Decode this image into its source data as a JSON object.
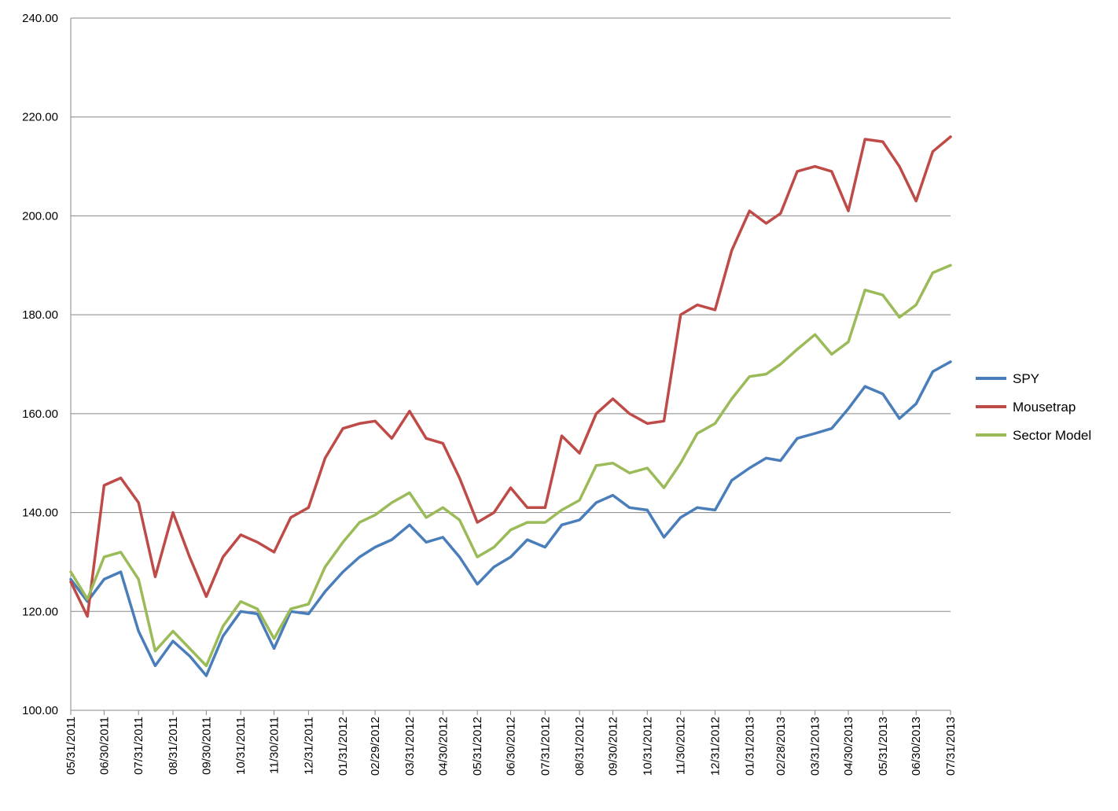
{
  "chart_data": {
    "type": "line",
    "title": "",
    "xlabel": "",
    "ylabel": "",
    "ylim": [
      100,
      240
    ],
    "y_ticks": [
      "100.00",
      "120.00",
      "140.00",
      "160.00",
      "180.00",
      "200.00",
      "220.00",
      "240.00"
    ],
    "grid": "horizontal",
    "legend_position": "right",
    "x_tick_labels": [
      "05/31/2011",
      "06/30/2011",
      "07/31/2011",
      "08/31/2011",
      "09/30/2011",
      "10/31/2011",
      "11/30/2011",
      "12/31/2011",
      "01/31/2012",
      "02/29/2012",
      "03/31/2012",
      "04/30/2012",
      "05/31/2012",
      "06/30/2012",
      "07/31/2012",
      "08/31/2012",
      "09/30/2012",
      "10/31/2012",
      "11/30/2012",
      "12/31/2012",
      "01/31/2013",
      "02/28/2013",
      "03/31/2013",
      "04/30/2013",
      "05/31/2013",
      "06/30/2013",
      "07/31/2013"
    ],
    "x": [
      "2011-05-31",
      "2011-06-15",
      "2011-06-30",
      "2011-07-15",
      "2011-07-31",
      "2011-08-15",
      "2011-08-31",
      "2011-09-15",
      "2011-09-30",
      "2011-10-15",
      "2011-10-31",
      "2011-11-15",
      "2011-11-30",
      "2011-12-15",
      "2011-12-31",
      "2012-01-15",
      "2012-01-31",
      "2012-02-15",
      "2012-02-29",
      "2012-03-15",
      "2012-03-31",
      "2012-04-15",
      "2012-04-30",
      "2012-05-15",
      "2012-05-31",
      "2012-06-15",
      "2012-06-30",
      "2012-07-15",
      "2012-07-31",
      "2012-08-15",
      "2012-08-31",
      "2012-09-15",
      "2012-09-30",
      "2012-10-15",
      "2012-10-31",
      "2012-11-15",
      "2012-11-30",
      "2012-12-15",
      "2012-12-31",
      "2013-01-15",
      "2013-01-31",
      "2013-02-15",
      "2013-02-28",
      "2013-03-15",
      "2013-03-31",
      "2013-04-15",
      "2013-04-30",
      "2013-05-15",
      "2013-05-31",
      "2013-06-15",
      "2013-06-30",
      "2013-07-15",
      "2013-07-31"
    ],
    "series": [
      {
        "name": "SPY",
        "color": "#4A7EBB",
        "values": [
          126.5,
          122.0,
          126.5,
          128.0,
          116.0,
          109.0,
          114.0,
          111.0,
          107.0,
          115.0,
          120.0,
          119.5,
          112.5,
          120.0,
          119.5,
          124.0,
          128.0,
          131.0,
          133.0,
          134.5,
          137.5,
          134.0,
          135.0,
          131.0,
          125.5,
          129.0,
          131.0,
          134.5,
          133.0,
          137.5,
          138.5,
          142.0,
          143.5,
          141.0,
          140.5,
          135.0,
          139.0,
          141.0,
          140.5,
          146.5,
          149.0,
          151.0,
          150.5,
          155.0,
          156.0,
          157.0,
          161.0,
          165.5,
          164.0,
          159.0,
          162.0,
          168.5,
          170.5
        ]
      },
      {
        "name": "Mousetrap",
        "color": "#BE4B48",
        "values": [
          126.0,
          119.0,
          145.5,
          147.0,
          142.0,
          127.0,
          140.0,
          131.0,
          123.0,
          131.0,
          135.5,
          134.0,
          132.0,
          139.0,
          141.0,
          151.0,
          157.0,
          158.0,
          158.5,
          155.0,
          160.5,
          155.0,
          154.0,
          147.0,
          138.0,
          140.0,
          145.0,
          141.0,
          141.0,
          155.5,
          152.0,
          160.0,
          163.0,
          160.0,
          158.0,
          158.5,
          180.0,
          182.0,
          181.0,
          193.0,
          201.0,
          198.5,
          200.5,
          209.0,
          210.0,
          209.0,
          201.0,
          215.5,
          215.0,
          210.0,
          203.0,
          213.0,
          216.0
        ]
      },
      {
        "name": "Sector Model",
        "color": "#9BBB59",
        "values": [
          128.0,
          122.5,
          131.0,
          132.0,
          126.5,
          112.0,
          116.0,
          112.5,
          109.0,
          117.0,
          122.0,
          120.5,
          114.5,
          120.5,
          121.5,
          129.0,
          134.0,
          138.0,
          139.5,
          142.0,
          144.0,
          139.0,
          141.0,
          138.5,
          131.0,
          133.0,
          136.5,
          138.0,
          138.0,
          140.5,
          142.5,
          149.5,
          150.0,
          148.0,
          149.0,
          145.0,
          150.0,
          156.0,
          158.0,
          163.0,
          167.5,
          168.0,
          170.0,
          173.0,
          176.0,
          172.0,
          174.5,
          185.0,
          184.0,
          179.5,
          182.0,
          188.5,
          190.0
        ]
      }
    ]
  }
}
